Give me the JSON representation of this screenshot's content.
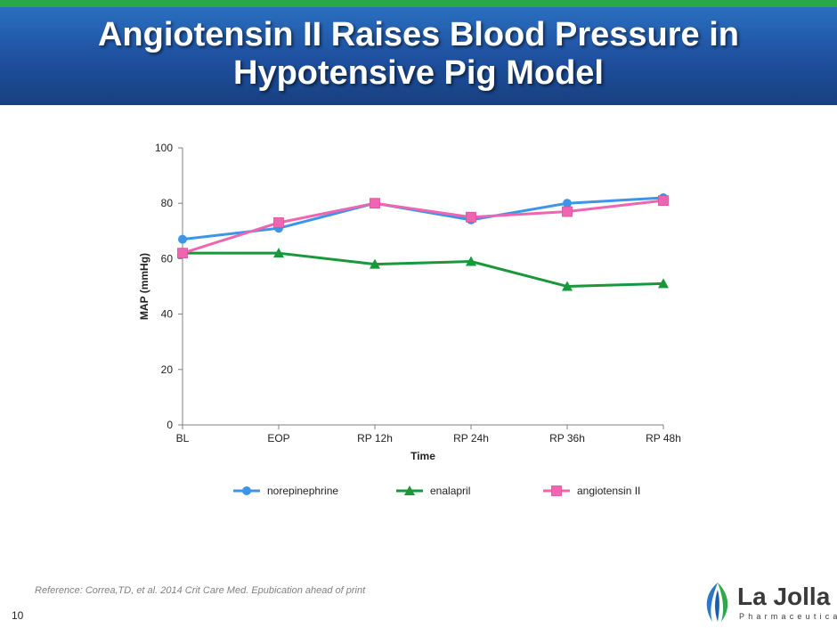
{
  "slide": {
    "title_line1": "Angiotensin II Raises Blood Pressure in",
    "title_line2": "Hypotensive Pig Model",
    "reference": "Reference: Correa,TD, et al. 2014 Crit Care Med. Epubication ahead of print",
    "slide_number": "10",
    "logo_name": "La Jolla",
    "logo_sub": "Pharmaceutical"
  },
  "colors": {
    "header_top": "#29a84a",
    "header_bg": "#1e4f9e",
    "norepinephrine": "#3d95e8",
    "enalapril": "#18983a",
    "angiotensin": "#ef65b1",
    "axis": "#7f7f7f"
  },
  "chart_data": {
    "type": "line",
    "title": "",
    "xlabel": "Time",
    "ylabel": "MAP (mmHg)",
    "ylim": [
      0,
      100
    ],
    "yticks": [
      0,
      20,
      40,
      60,
      80,
      100
    ],
    "categories": [
      "BL",
      "EOP",
      "RP 12h",
      "RP 24h",
      "RP 36h",
      "RP 48h"
    ],
    "legend_position": "bottom",
    "series": [
      {
        "name": "norepinephrine",
        "marker": "circle",
        "color": "#3d95e8",
        "values": [
          67,
          71,
          80,
          74,
          80,
          82
        ]
      },
      {
        "name": "enalapril",
        "marker": "triangle",
        "color": "#18983a",
        "values": [
          62,
          62,
          58,
          59,
          50,
          51
        ]
      },
      {
        "name": "angiotensin II",
        "marker": "square",
        "color": "#ef65b1",
        "values": [
          62,
          73,
          80,
          75,
          77,
          81
        ]
      }
    ]
  }
}
